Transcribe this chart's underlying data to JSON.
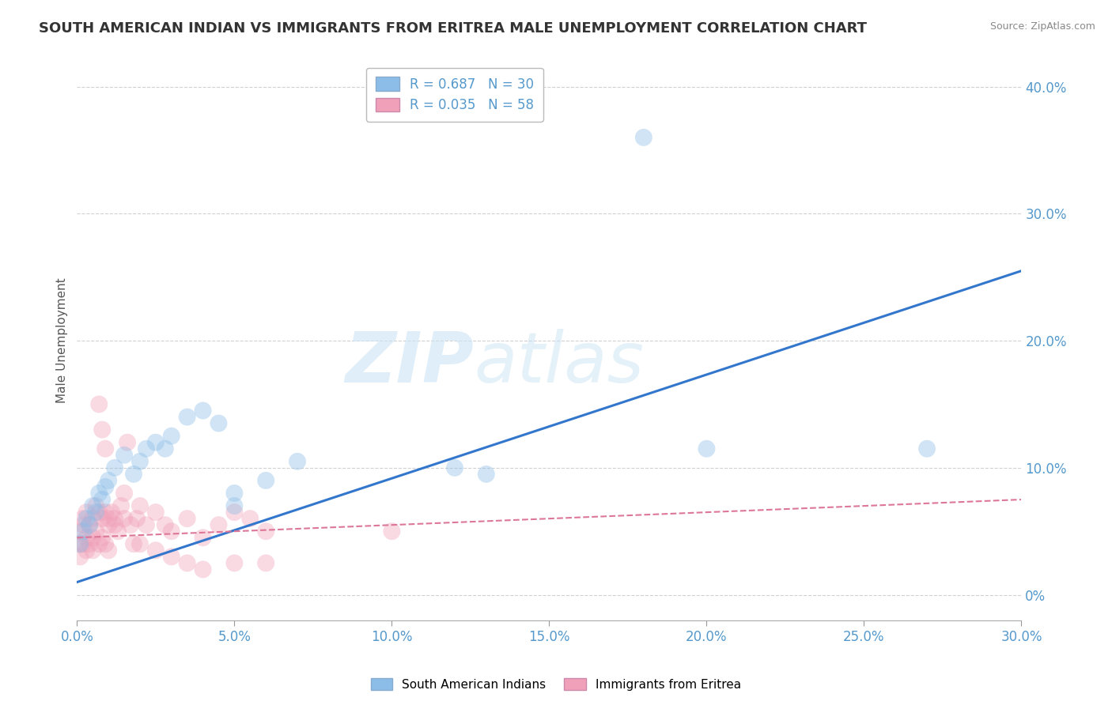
{
  "title": "SOUTH AMERICAN INDIAN VS IMMIGRANTS FROM ERITREA MALE UNEMPLOYMENT CORRELATION CHART",
  "source": "Source: ZipAtlas.com",
  "xlim": [
    0,
    0.3
  ],
  "ylim": [
    -0.02,
    0.42
  ],
  "ylabel": "Male Unemployment",
  "legend_entries": [
    {
      "label": "R = 0.687   N = 30",
      "color": "#a8c8f0"
    },
    {
      "label": "R = 0.035   N = 58",
      "color": "#f0a8b8"
    }
  ],
  "watermark_zip": "ZIP",
  "watermark_atlas": "atlas",
  "blue_scatter_x": [
    0.001,
    0.002,
    0.003,
    0.004,
    0.005,
    0.006,
    0.007,
    0.008,
    0.009,
    0.01,
    0.012,
    0.015,
    0.018,
    0.02,
    0.022,
    0.025,
    0.028,
    0.03,
    0.035,
    0.04,
    0.045,
    0.05,
    0.06,
    0.07,
    0.12,
    0.13,
    0.18,
    0.2,
    0.27,
    0.05
  ],
  "blue_scatter_y": [
    0.04,
    0.05,
    0.06,
    0.055,
    0.07,
    0.065,
    0.08,
    0.075,
    0.085,
    0.09,
    0.1,
    0.11,
    0.095,
    0.105,
    0.115,
    0.12,
    0.115,
    0.125,
    0.14,
    0.145,
    0.135,
    0.08,
    0.09,
    0.105,
    0.1,
    0.095,
    0.36,
    0.115,
    0.115,
    0.07
  ],
  "pink_scatter_x": [
    0.001,
    0.001,
    0.001,
    0.002,
    0.002,
    0.002,
    0.003,
    0.003,
    0.003,
    0.004,
    0.004,
    0.005,
    0.005,
    0.005,
    0.006,
    0.006,
    0.007,
    0.007,
    0.008,
    0.008,
    0.009,
    0.009,
    0.01,
    0.01,
    0.011,
    0.012,
    0.013,
    0.014,
    0.015,
    0.016,
    0.017,
    0.018,
    0.019,
    0.02,
    0.022,
    0.025,
    0.028,
    0.03,
    0.035,
    0.04,
    0.045,
    0.05,
    0.055,
    0.06,
    0.007,
    0.008,
    0.009,
    0.01,
    0.012,
    0.015,
    0.02,
    0.025,
    0.03,
    0.035,
    0.04,
    0.05,
    0.06,
    0.1
  ],
  "pink_scatter_y": [
    0.04,
    0.05,
    0.03,
    0.06,
    0.04,
    0.055,
    0.065,
    0.045,
    0.035,
    0.055,
    0.04,
    0.06,
    0.045,
    0.035,
    0.07,
    0.05,
    0.065,
    0.04,
    0.06,
    0.045,
    0.065,
    0.04,
    0.055,
    0.035,
    0.065,
    0.06,
    0.05,
    0.07,
    0.08,
    0.12,
    0.055,
    0.04,
    0.06,
    0.07,
    0.055,
    0.065,
    0.055,
    0.05,
    0.06,
    0.045,
    0.055,
    0.065,
    0.06,
    0.05,
    0.15,
    0.13,
    0.115,
    0.06,
    0.055,
    0.06,
    0.04,
    0.035,
    0.03,
    0.025,
    0.02,
    0.025,
    0.025,
    0.05
  ],
  "blue_line_x": [
    0.0,
    0.3
  ],
  "blue_line_y": [
    0.01,
    0.255
  ],
  "pink_line_x": [
    0.0,
    0.3
  ],
  "pink_line_y": [
    0.045,
    0.075
  ],
  "scatter_size": 250,
  "scatter_alpha": 0.4,
  "blue_color": "#8bbde8",
  "pink_color": "#f0a0b8",
  "blue_line_color": "#3377cc",
  "pink_line_color": "#dd7799",
  "background_color": "#ffffff",
  "grid_color": "#cccccc",
  "title_fontsize": 13,
  "axis_label_fontsize": 11,
  "tick_fontsize": 12,
  "tick_color": "#5599cc"
}
